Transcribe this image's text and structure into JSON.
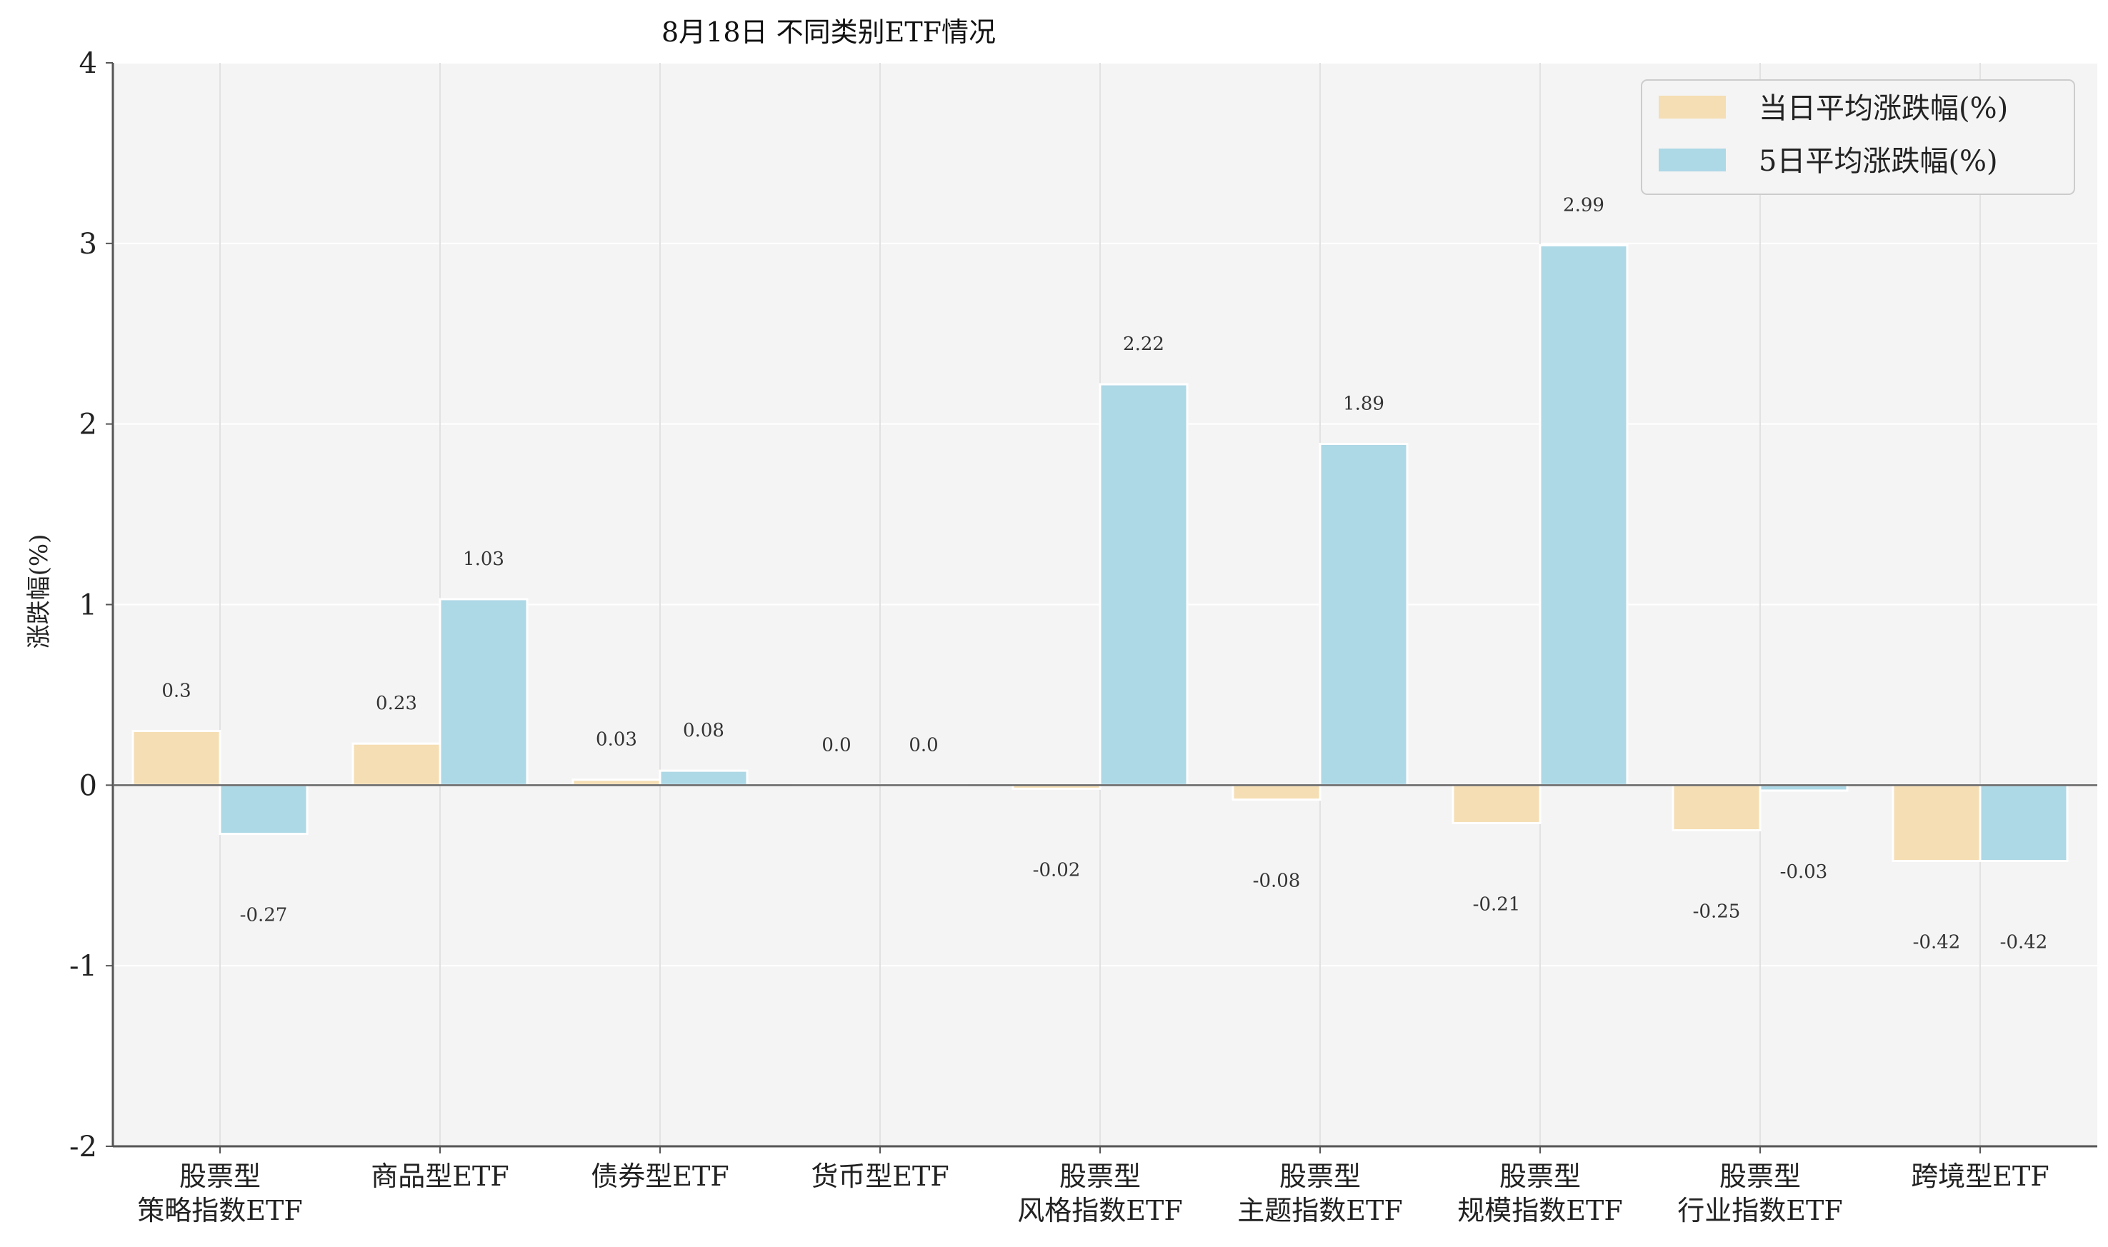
{
  "chart_data": {
    "type": "bar",
    "title": "8月18日 不同类别ETF情况",
    "xlabel": "",
    "ylabel": "涨跌幅(%)",
    "ylim": [
      -2,
      4
    ],
    "yticks": [
      -2,
      -1,
      0,
      1,
      2,
      3,
      4
    ],
    "grid": true,
    "legend_position": "top-right",
    "categories": [
      "股票型\n策略指数ETF",
      "商品型ETF",
      "债券型ETF",
      "货币型ETF",
      "股票型\n风格指数ETF",
      "股票型\n主题指数ETF",
      "股票型\n规模指数ETF",
      "股票型\n行业指数ETF",
      "跨境型ETF"
    ],
    "series": [
      {
        "name": "当日平均涨跌幅(%)",
        "color": "#f5deb3",
        "values": [
          0.3,
          0.23,
          0.03,
          0.0,
          -0.02,
          -0.08,
          -0.21,
          -0.25,
          -0.42
        ],
        "labels": [
          "0.3",
          "0.23",
          "0.03",
          "0.0",
          "-0.02",
          "-0.08",
          "-0.21",
          "-0.25",
          "-0.42"
        ]
      },
      {
        "name": "5日平均涨跌幅(%)",
        "color": "#add8e6",
        "values": [
          -0.27,
          1.03,
          0.08,
          0.0,
          2.22,
          1.89,
          2.99,
          -0.03,
          -0.42
        ],
        "labels": [
          "-0.27",
          "1.03",
          "0.08",
          "0.0",
          "2.22",
          "1.89",
          "2.99",
          "-0.03",
          "-0.42"
        ]
      }
    ]
  }
}
